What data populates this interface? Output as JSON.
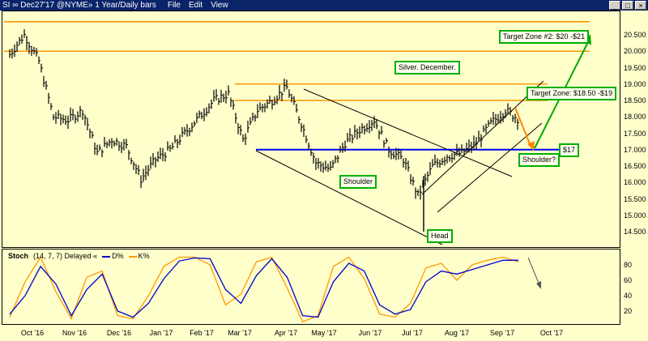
{
  "window": {
    "title": "SI ∞ Dec27'17 @NYME»  1 Year/Daily bars",
    "menus": [
      "File",
      "Edit",
      "View"
    ],
    "buttons": [
      "_",
      "□",
      "×"
    ]
  },
  "colors": {
    "background": "#FFFFCC",
    "bars": "#000000",
    "resistance": "#FF9900",
    "support": "#0000FF",
    "channel": "#000000",
    "up_arrow": "#00AA00",
    "down_arrow": "#FF8800",
    "box_border": "#00B000",
    "d_line": "#0000CC",
    "k_line": "#FF9900"
  },
  "annotations": {
    "title_box": "Silver. December.",
    "target1": "Target Zone: $18.50 -$19",
    "target2": "Target Zone #2: $20 -$21",
    "support_label": "$17",
    "shoulder_left": "Shoulder",
    "head": "Head",
    "shoulder_right": "Shoulder?"
  },
  "stoch": {
    "title": "Stoch",
    "params": "(14, 7, 7) Delayed «",
    "d_label": "D%",
    "k_label": "K%",
    "yticks": [
      "80",
      "60",
      "40",
      "20"
    ]
  },
  "chart_data": {
    "type": "line",
    "instrument": "SI Dec27'17 @NYME",
    "price_axis": [
      "20.500",
      "20.000",
      "19.500",
      "19.000",
      "18.500",
      "18.000",
      "17.500",
      "17.000",
      "16.500",
      "16.000",
      "15.500",
      "15.000",
      "14.500"
    ],
    "x_tick_labels": [
      "Oct '16",
      "Nov '16",
      "Dec '16",
      "Jan '17",
      "Feb '17",
      "Mar '17",
      "Apr '17",
      "May '17",
      "Jun '17",
      "Jul '17",
      "Aug '17",
      "Sep '17",
      "Oct '17"
    ],
    "ylim": [
      14.2,
      21.0
    ],
    "close_series": [
      {
        "date": "Oct '16",
        "close": 19.9
      },
      {
        "date": "Oct '16 mid",
        "close": 20.5
      },
      {
        "date": "Oct '16 late",
        "close": 19.7
      },
      {
        "date": "Nov '16",
        "close": 18.0
      },
      {
        "date": "Nov '16 mid",
        "close": 17.9
      },
      {
        "date": "Nov '16 late",
        "close": 18.2
      },
      {
        "date": "Dec '16",
        "close": 16.9
      },
      {
        "date": "Dec '16 mid",
        "close": 17.3
      },
      {
        "date": "Dec '16 late",
        "close": 17.1
      },
      {
        "date": "Jan '17",
        "close": 16.1
      },
      {
        "date": "Jan '17 mid",
        "close": 16.7
      },
      {
        "date": "Jan '17 late",
        "close": 17.0
      },
      {
        "date": "Feb '17",
        "close": 17.5
      },
      {
        "date": "Feb '17 mid",
        "close": 18.0
      },
      {
        "date": "Feb '17 late",
        "close": 18.5
      },
      {
        "date": "Mar '17",
        "close": 18.7
      },
      {
        "date": "Mar '17 mid",
        "close": 17.3
      },
      {
        "date": "Mar '17 late",
        "close": 18.2
      },
      {
        "date": "Apr '17",
        "close": 18.5
      },
      {
        "date": "Apr '17 mid",
        "close": 18.9
      },
      {
        "date": "Apr '17 late",
        "close": 17.8
      },
      {
        "date": "May '17",
        "close": 16.6
      },
      {
        "date": "May '17 mid",
        "close": 16.4
      },
      {
        "date": "May '17 late",
        "close": 17.2
      },
      {
        "date": "Jun '17",
        "close": 17.6
      },
      {
        "date": "Jun '17 mid",
        "close": 17.9
      },
      {
        "date": "Jun '17 late",
        "close": 17.0
      },
      {
        "date": "Jul '17",
        "close": 16.7
      },
      {
        "date": "Jul '17 mid",
        "close": 15.6
      },
      {
        "date": "Jul '17 late",
        "close": 16.5
      },
      {
        "date": "Aug '17",
        "close": 16.8
      },
      {
        "date": "Aug '17 mid",
        "close": 16.9
      },
      {
        "date": "Aug '17 late",
        "close": 17.2
      },
      {
        "date": "Sep '17",
        "close": 17.8
      },
      {
        "date": "Sep '17 mid",
        "close": 18.2
      },
      {
        "date": "Sep '17 late",
        "close": 17.9
      }
    ],
    "horizontal_levels": [
      {
        "price": 20.9
      },
      {
        "price": 20.0
      },
      {
        "price": 19.0
      },
      {
        "price": 18.5
      },
      {
        "price": 17.0
      }
    ],
    "stochastic": {
      "ylim": [
        0,
        100
      ],
      "d_series": [
        16,
        40,
        78,
        55,
        14,
        48,
        68,
        20,
        12,
        30,
        62,
        85,
        89,
        88,
        48,
        30,
        66,
        88,
        64,
        14,
        12,
        58,
        82,
        72,
        28,
        16,
        22,
        58,
        72,
        68,
        74,
        80,
        86,
        86
      ],
      "k_series": [
        12,
        58,
        90,
        45,
        10,
        64,
        72,
        14,
        10,
        40,
        78,
        90,
        90,
        80,
        28,
        42,
        84,
        90,
        50,
        6,
        14,
        78,
        90,
        62,
        16,
        12,
        30,
        76,
        82,
        60,
        80,
        86,
        90,
        84
      ]
    }
  }
}
